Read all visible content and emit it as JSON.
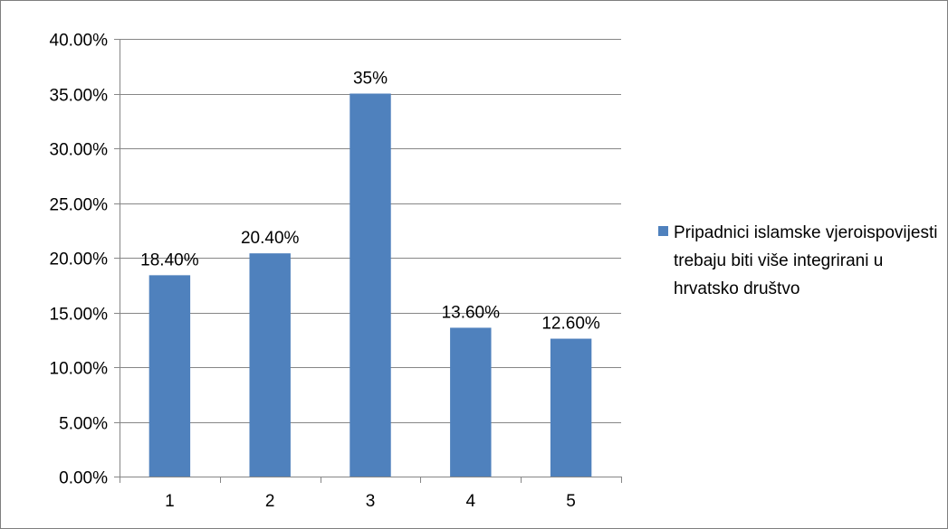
{
  "chart_data": {
    "type": "bar",
    "categories": [
      "1",
      "2",
      "3",
      "4",
      "5"
    ],
    "series": [
      {
        "name": "Pripadnici islamske vjeroispovijesti trebaju biti više integrirani u hrvatsko društvo",
        "values": [
          18.4,
          20.4,
          35,
          13.6,
          12.6
        ],
        "data_labels": [
          "18.40%",
          "20.40%",
          "35%",
          "13.60%",
          "12.60%"
        ]
      }
    ],
    "ylim": [
      0,
      40
    ],
    "yticks": [
      0,
      5,
      10,
      15,
      20,
      25,
      30,
      35,
      40
    ],
    "ytick_labels": [
      "0.00%",
      "5.00%",
      "10.00%",
      "15.00%",
      "20.00%",
      "25.00%",
      "30.00%",
      "35.00%",
      "40.00%"
    ],
    "grid": true,
    "legend_position": "right",
    "title": "",
    "xlabel": "",
    "ylabel": ""
  },
  "colors": {
    "bar": "#4f81bd",
    "grid": "#868686",
    "axis": "#868686"
  }
}
